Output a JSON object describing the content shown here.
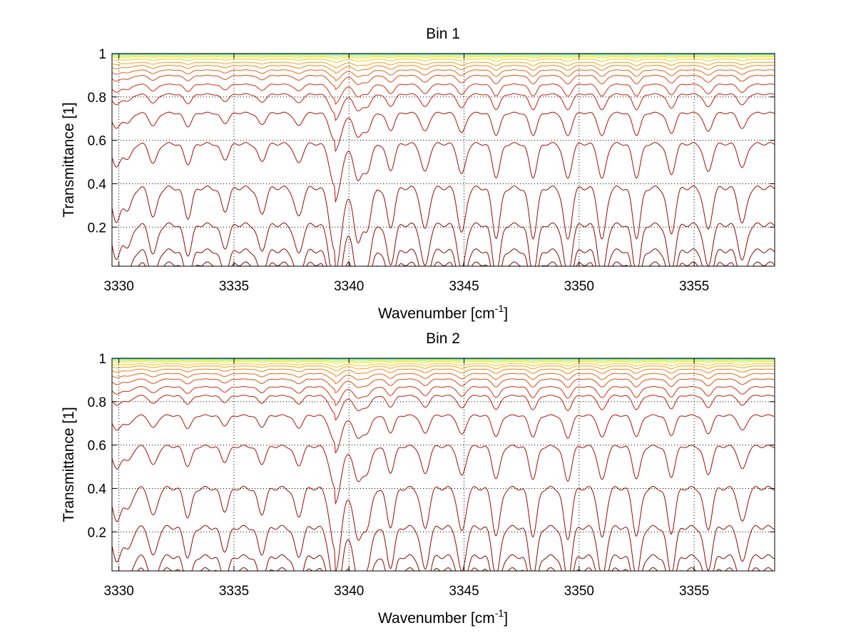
{
  "chart_data": [
    {
      "type": "line",
      "title": "Bin 1",
      "xlabel": "Wavenumber [cm",
      "xlabel_sup": "-1",
      "xlabel_end": "]",
      "ylabel": "Transmittance [1]",
      "xlim": [
        3329.7,
        3358.5
      ],
      "ylim": [
        0.02,
        1.0
      ],
      "xticks": [
        3330,
        3335,
        3340,
        3345,
        3350,
        3355
      ],
      "yticks": [
        0.2,
        0.4,
        0.6,
        0.8,
        1
      ],
      "grid": "dotted",
      "legend": "none",
      "line_sample_x": [
        3330,
        3331.5,
        3333,
        3334.5,
        3336,
        3337.8,
        3339.4,
        3340.5,
        3342,
        3343.5,
        3345,
        3346.5,
        3348,
        3349.5,
        3351,
        3352.5,
        3354,
        3355.6,
        3357,
        3358.5
      ],
      "series": [
        {
          "color": "#00b0ff",
          "baseline": 1.0
        },
        {
          "color": "#3cd4c8",
          "baseline": 0.998
        },
        {
          "color": "#7fe07a",
          "baseline": 0.995
        },
        {
          "color": "#c8e83a",
          "baseline": 0.99
        },
        {
          "color": "#f2e51e",
          "baseline": 0.985
        },
        {
          "color": "#f7c51a",
          "baseline": 0.975
        },
        {
          "color": "#f4a417",
          "baseline": 0.96
        },
        {
          "color": "#ef8414",
          "baseline": 0.945
        },
        {
          "color": "#e86412",
          "baseline": 0.925
        },
        {
          "color": "#de4610",
          "baseline": 0.9
        },
        {
          "color": "#d02e0d",
          "baseline": 0.86
        },
        {
          "color": "#c01c0a",
          "baseline": 0.815
        },
        {
          "color": "#b01308",
          "baseline": 0.73
        },
        {
          "color": "#a50e07",
          "baseline": 0.59
        },
        {
          "color": "#9a0b06",
          "baseline": 0.39
        },
        {
          "color": "#900805",
          "baseline": 0.22
        },
        {
          "color": "#870604",
          "baseline": 0.1
        },
        {
          "color": "#7f0504",
          "baseline": 0.04
        }
      ]
    },
    {
      "type": "line",
      "title": "Bin 2",
      "xlabel": "Wavenumber [cm",
      "xlabel_sup": "-1",
      "xlabel_end": "]",
      "ylabel": "Transmittance [1]",
      "xlim": [
        3329.7,
        3358.5
      ],
      "ylim": [
        0.02,
        1.0
      ],
      "xticks": [
        3330,
        3335,
        3340,
        3345,
        3350,
        3355
      ],
      "yticks": [
        0.2,
        0.4,
        0.6,
        0.8,
        1
      ],
      "grid": "dotted",
      "legend": "none",
      "series": [
        {
          "color": "#00b0ff",
          "baseline": 1.0
        },
        {
          "color": "#3cd4c8",
          "baseline": 0.998
        },
        {
          "color": "#7fe07a",
          "baseline": 0.995
        },
        {
          "color": "#c8e83a",
          "baseline": 0.99
        },
        {
          "color": "#f2e51e",
          "baseline": 0.985
        },
        {
          "color": "#f7c51a",
          "baseline": 0.975
        },
        {
          "color": "#f4a417",
          "baseline": 0.965
        },
        {
          "color": "#ef8414",
          "baseline": 0.95
        },
        {
          "color": "#e86412",
          "baseline": 0.93
        },
        {
          "color": "#de4610",
          "baseline": 0.905
        },
        {
          "color": "#d02e0d",
          "baseline": 0.87
        },
        {
          "color": "#c01c0a",
          "baseline": 0.83
        },
        {
          "color": "#b01308",
          "baseline": 0.74
        },
        {
          "color": "#a50e07",
          "baseline": 0.6
        },
        {
          "color": "#9a0b06",
          "baseline": 0.41
        },
        {
          "color": "#900805",
          "baseline": 0.23
        },
        {
          "color": "#870604",
          "baseline": 0.095
        },
        {
          "color": "#7f0504",
          "baseline": 0.035
        }
      ]
    }
  ]
}
